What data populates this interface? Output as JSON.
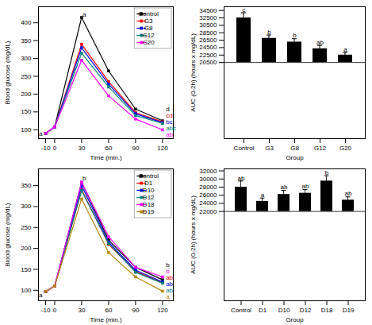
{
  "chart_data": [
    {
      "type": "line",
      "x": [
        -10,
        0,
        30,
        60,
        90,
        120
      ],
      "series": [
        {
          "name": "Control",
          "color": "black",
          "marker": "square",
          "values": [
            90,
            108,
            415,
            265,
            158,
            125
          ]
        },
        {
          "name": "G3",
          "color": "red",
          "marker": "square",
          "values": [
            90,
            108,
            340,
            235,
            148,
            122
          ]
        },
        {
          "name": "G8",
          "color": "blue",
          "marker": "square",
          "values": [
            90,
            108,
            330,
            228,
            145,
            120
          ]
        },
        {
          "name": "G12",
          "color": "teal",
          "marker": "square",
          "values": [
            90,
            108,
            315,
            220,
            140,
            118
          ]
        },
        {
          "name": "G20",
          "color": "magenta",
          "marker": "square",
          "values": [
            90,
            108,
            295,
            195,
            130,
            100
          ]
        }
      ],
      "xlabel": "Time (min.)",
      "ylabel": "Blood glucose (mg/dL)",
      "xlim": [
        -18,
        132
      ],
      "xticks": [
        -10,
        0,
        30,
        60,
        90,
        120
      ],
      "ylim": [
        75,
        445
      ],
      "yticks": [
        100,
        150,
        200,
        250,
        300,
        350,
        400
      ],
      "grid": false,
      "legend": "upper right",
      "annotations": [
        {
          "text": "d",
          "x": 122,
          "y": 131,
          "color": "black"
        },
        {
          "text": "cd",
          "x": 122,
          "y": 124,
          "color": "red"
        },
        {
          "text": "bc",
          "x": 122,
          "y": 118,
          "color": "blue"
        },
        {
          "text": "abc",
          "x": 122,
          "y": 112,
          "color": "teal"
        },
        {
          "text": "ab",
          "x": 122,
          "y": 88,
          "color": "magenta"
        },
        {
          "text": "a",
          "x": 31,
          "y": 418,
          "color": "black"
        },
        {
          "text": "a",
          "x": -10,
          "y": 83,
          "color": "black"
        }
      ]
    },
    {
      "type": "bar",
      "categories": [
        "Control",
        "G3",
        "G8",
        "G12",
        "G20"
      ],
      "values": [
        32500,
        27000,
        26000,
        24200,
        22500
      ],
      "errors": [
        1400,
        900,
        900,
        900,
        700
      ],
      "bottom": 20500,
      "color": "black",
      "xlabel": "Group",
      "ylabel": "AUC (0-2h) (hours x mg/dL)",
      "ylim": [
        0,
        35500
      ],
      "yticks": [
        20500,
        22500,
        24500,
        26500,
        28500,
        30500,
        32500,
        34500
      ],
      "grid": false,
      "annotations": [
        {
          "text": "c",
          "x": "Control",
          "y": 34200
        },
        {
          "text": "b",
          "x": "G3",
          "y": 28200
        },
        {
          "text": "b",
          "x": "G8",
          "y": 27200
        },
        {
          "text": "ab",
          "x": "G12",
          "y": 25400
        },
        {
          "text": "a",
          "x": "G20",
          "y": 23500
        }
      ]
    },
    {
      "type": "line",
      "x": [
        -10,
        0,
        30,
        60,
        90,
        120
      ],
      "series": [
        {
          "name": "Control",
          "color": "black",
          "marker": "square",
          "values": [
            97,
            110,
            358,
            220,
            155,
            125
          ]
        },
        {
          "name": "D1",
          "color": "red",
          "marker": "square",
          "values": [
            97,
            110,
            340,
            210,
            145,
            118
          ]
        },
        {
          "name": "D10",
          "color": "blue",
          "marker": "square",
          "values": [
            97,
            110,
            350,
            215,
            148,
            120
          ]
        },
        {
          "name": "D12",
          "color": "teal",
          "marker": "square",
          "values": [
            97,
            110,
            338,
            212,
            143,
            117
          ]
        },
        {
          "name": "D18",
          "color": "magenta",
          "marker": "square",
          "values": [
            97,
            110,
            358,
            228,
            155,
            132
          ]
        },
        {
          "name": "D19",
          "color": "#b8860b",
          "marker": "square",
          "values": [
            97,
            110,
            318,
            190,
            132,
            98
          ]
        }
      ],
      "xlabel": "Time (min.)",
      "ylabel": "Blood glucose (mg/dL)",
      "xlim": [
        -18,
        132
      ],
      "xticks": [
        -10,
        0,
        30,
        60,
        90,
        120
      ],
      "ylim": [
        75,
        390
      ],
      "yticks": [
        100,
        150,
        200,
        250,
        300,
        350
      ],
      "grid": false,
      "legend": "upper right",
      "annotations": [
        {
          "text": "b",
          "x": 122,
          "y": 133,
          "color": "black"
        },
        {
          "text": "ab",
          "x": 122,
          "y": 122,
          "color": "red"
        },
        {
          "text": "ab",
          "x": 122,
          "y": 120,
          "color": "blue"
        },
        {
          "text": "ab",
          "x": 122,
          "y": 113,
          "color": "teal"
        },
        {
          "text": "b",
          "x": 122,
          "y": 124,
          "color": "magenta"
        },
        {
          "text": "a",
          "x": 122,
          "y": 85,
          "color": "#b8860b"
        },
        {
          "text": "b",
          "x": 31,
          "y": 362,
          "color": "black"
        },
        {
          "text": "a",
          "x": -10,
          "y": 83,
          "color": "black"
        }
      ]
    },
    {
      "type": "bar",
      "categories": [
        "Control",
        "D1",
        "D10",
        "D12",
        "D18",
        "D19"
      ],
      "values": [
        28000,
        24500,
        26200,
        26500,
        29500,
        24800
      ],
      "errors": [
        1500,
        800,
        1000,
        900,
        1300,
        800
      ],
      "bottom": 22000,
      "color": "black",
      "xlabel": "Group",
      "ylabel": "AUC (0-2h) (hours x mg/dL)",
      "ylim": [
        0,
        32500
      ],
      "yticks": [
        22000,
        24000,
        26000,
        28000,
        30000,
        32000
      ],
      "grid": false,
      "annotations": [
        {
          "text": "ab",
          "x": "Control",
          "y": 29750
        },
        {
          "text": "a",
          "x": "D1",
          "y": 25550
        },
        {
          "text": "ab",
          "x": "D10",
          "y": 27450
        },
        {
          "text": "ab",
          "x": "D12",
          "y": 27650
        },
        {
          "text": "b",
          "x": "D18",
          "y": 31050
        },
        {
          "text": "ab",
          "x": "D19",
          "y": 25850
        }
      ]
    }
  ]
}
